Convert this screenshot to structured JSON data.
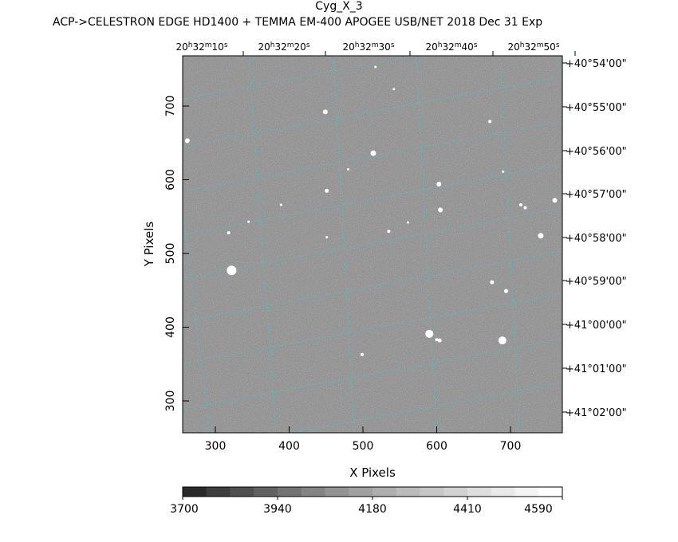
{
  "header": {
    "title": "Cyg_X_3",
    "subtitle": "ACP->CELESTRON EDGE HD1400 + TEMMA EM-400 APOGEE USB/NET   2018 Dec 31    Exp"
  },
  "axes": {
    "xlabel": "X Pixels",
    "ylabel": "Y Pixels",
    "x_ticks": [
      "300",
      "400",
      "500",
      "600",
      "700"
    ],
    "y_ticks": [
      "300",
      "400",
      "500",
      "600",
      "700"
    ],
    "ra_ticks": [
      {
        "h": "20",
        "m": "32",
        "s": "10"
      },
      {
        "h": "20",
        "m": "32",
        "s": "20"
      },
      {
        "h": "20",
        "m": "32",
        "s": "30"
      },
      {
        "h": "20",
        "m": "32",
        "s": "40"
      },
      {
        "h": "20",
        "m": "32",
        "s": "50"
      }
    ],
    "dec_ticks": [
      "+40°54'00\"",
      "+40°55'00\"",
      "+40°56'00\"",
      "+40°57'00\"",
      "+40°58'00\"",
      "+40°59'00\"",
      "+41°00'00\"",
      "+41°01'00\"",
      "+41°02'00\""
    ]
  },
  "colorbar": {
    "labels": [
      "3700",
      "3940",
      "4180",
      "4410",
      "4590"
    ],
    "shades": [
      "#2a2a2a",
      "#3d3d3d",
      "#505050",
      "#626262",
      "#737373",
      "#848484",
      "#939393",
      "#a1a1a1",
      "#aeaeae",
      "#bababa",
      "#c6c6c6",
      "#d2d2d2",
      "#dedede",
      "#e9e9e9",
      "#f4f4f4",
      "#ffffff"
    ]
  },
  "colors": {
    "grid": "#3fc8c8",
    "background_sky": "#8a8a8a",
    "star": "#ffffff"
  },
  "stars": [
    {
      "x": 322,
      "y": 477,
      "r": 6
    },
    {
      "x": 590,
      "y": 391,
      "r": 5
    },
    {
      "x": 689,
      "y": 382,
      "r": 5
    },
    {
      "x": 514,
      "y": 636,
      "r": 3.5
    },
    {
      "x": 449,
      "y": 692,
      "r": 3
    },
    {
      "x": 262,
      "y": 653,
      "r": 3
    },
    {
      "x": 603,
      "y": 594,
      "r": 3
    },
    {
      "x": 605,
      "y": 559,
      "r": 3
    },
    {
      "x": 741,
      "y": 524,
      "r": 3.5
    },
    {
      "x": 760,
      "y": 572,
      "r": 3
    },
    {
      "x": 604,
      "y": 382,
      "r": 2.5
    },
    {
      "x": 694,
      "y": 449,
      "r": 2.5
    },
    {
      "x": 675,
      "y": 461,
      "r": 2.5
    },
    {
      "x": 451,
      "y": 585,
      "r": 2.5
    },
    {
      "x": 318,
      "y": 528,
      "r": 2
    },
    {
      "x": 535,
      "y": 530,
      "r": 2
    },
    {
      "x": 720,
      "y": 562,
      "r": 2
    },
    {
      "x": 714,
      "y": 566,
      "r": 2
    },
    {
      "x": 542,
      "y": 723,
      "r": 1.5
    },
    {
      "x": 672,
      "y": 679,
      "r": 2
    },
    {
      "x": 690,
      "y": 611,
      "r": 1.5
    },
    {
      "x": 517,
      "y": 753,
      "r": 1.5
    },
    {
      "x": 480,
      "y": 614,
      "r": 1.5
    },
    {
      "x": 389,
      "y": 566,
      "r": 1.5
    },
    {
      "x": 561,
      "y": 542,
      "r": 1.5
    },
    {
      "x": 499,
      "y": 363,
      "r": 2
    },
    {
      "x": 451,
      "y": 522,
      "r": 1.5
    },
    {
      "x": 345,
      "y": 543,
      "r": 1.5
    },
    {
      "x": 600,
      "y": 383,
      "r": 2
    }
  ]
}
